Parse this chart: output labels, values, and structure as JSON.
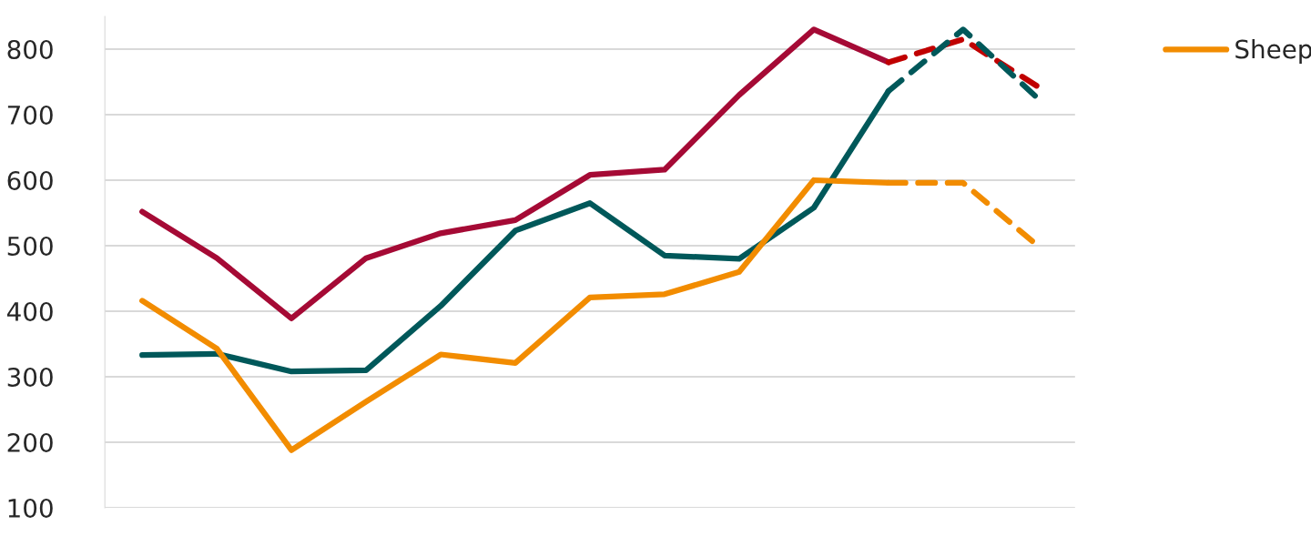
{
  "chart_data": {
    "type": "line",
    "categories": [
      null,
      null,
      null,
      null,
      null,
      null,
      null,
      null,
      null,
      null,
      null,
      null,
      null
    ],
    "series": [
      {
        "color": "#a50a35",
        "line_style": "solid",
        "values": [
          552,
          481,
          389,
          481,
          519,
          539,
          608,
          616,
          730,
          830,
          780,
          null,
          null
        ]
      },
      {
        "color": "#00585a",
        "line_style": "solid",
        "values": [
          333,
          335,
          308,
          310,
          408,
          523,
          565,
          485,
          480,
          558,
          736,
          null,
          null
        ]
      },
      {
        "name": "Sheep",
        "color": "#f28c00",
        "line_style": "solid",
        "values": [
          416,
          343,
          188,
          262,
          334,
          321,
          421,
          426,
          460,
          600,
          596,
          null,
          null
        ]
      },
      {
        "color": "#c00000",
        "line_style": "dashed",
        "values": [
          null,
          null,
          null,
          null,
          null,
          null,
          null,
          null,
          null,
          null,
          780,
          815,
          743
        ]
      },
      {
        "color": "#00585a",
        "line_style": "dashed",
        "values": [
          null,
          null,
          null,
          null,
          null,
          null,
          null,
          null,
          null,
          null,
          736,
          830,
          725
        ]
      },
      {
        "color": "#f28c00",
        "line_style": "dashed",
        "values": [
          null,
          null,
          null,
          null,
          null,
          null,
          null,
          null,
          null,
          null,
          596,
          596,
          500
        ]
      }
    ],
    "ylim": [
      100,
      850
    ],
    "yticks": [
      100,
      200,
      300,
      400,
      500,
      600,
      700,
      800
    ],
    "grid": "y",
    "legend": "top right",
    "marker": "none"
  }
}
